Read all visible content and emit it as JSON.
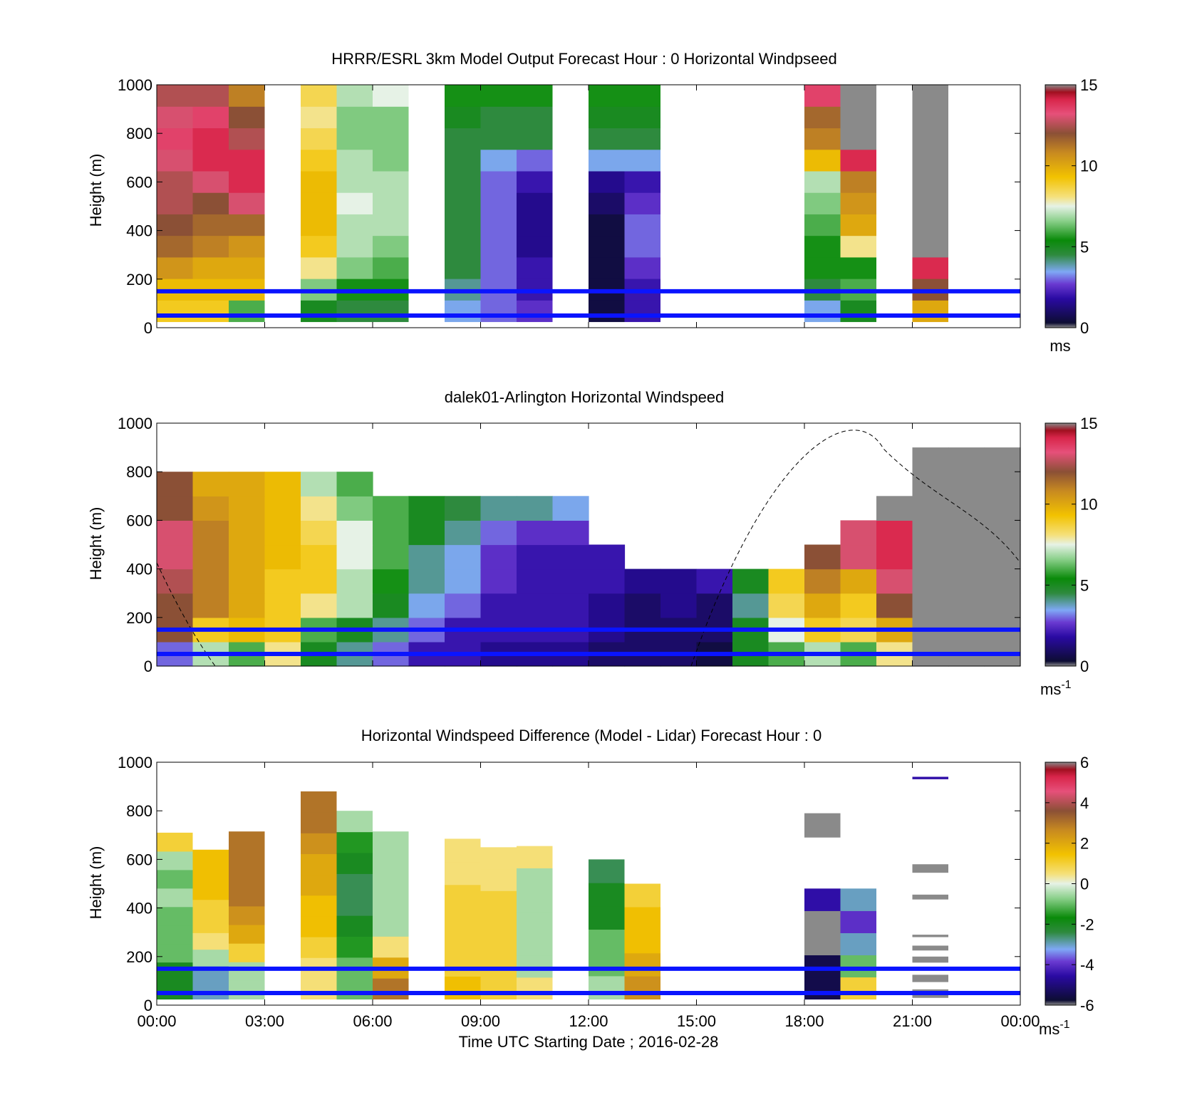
{
  "figure": {
    "xlabel": "Time UTC  Starting Date ; 2016-02-28",
    "xtick_labels": [
      "00:00",
      "03:00",
      "06:00",
      "09:00",
      "12:00",
      "15:00",
      "18:00",
      "21:00",
      "00:00"
    ]
  },
  "chart_data": [
    {
      "type": "heatmap",
      "title": "HRRR/ESRL 3km Model Output   Forecast Hour : 0 Horizontal Windpseed",
      "ylabel": "Height (m)",
      "yticks": [
        0,
        200,
        400,
        600,
        800,
        1000
      ],
      "ylim": [
        0,
        1000
      ],
      "xlim_hours": [
        0,
        24
      ],
      "colorbar": {
        "ticks": [
          0,
          5,
          10,
          15
        ],
        "range": [
          0,
          15
        ],
        "unit": "ms"
      },
      "reference_lines_m": [
        50,
        150
      ],
      "columns": [
        {
          "start_h": 0,
          "values": [
            9,
            9.5,
            10.5,
            11.5,
            12,
            12.5,
            12.5,
            13,
            13.5,
            13,
            12.5
          ]
        },
        {
          "start_h": 1,
          "values": [
            9,
            9.5,
            10,
            11,
            11.5,
            12,
            13,
            14,
            14,
            13.5,
            12.5
          ]
        },
        {
          "start_h": 2,
          "values": [
            6,
            9.5,
            10,
            10.5,
            11.5,
            13,
            14,
            14,
            12.5,
            12,
            11
          ]
        },
        {
          "start_h": 4,
          "values": [
            5,
            6.5,
            8,
            9,
            9.5,
            9.5,
            9.5,
            9,
            8.5,
            8,
            8.5
          ]
        },
        {
          "start_h": 5,
          "values": [
            4.5,
            5.5,
            6.5,
            7,
            7,
            7.5,
            7,
            7,
            6.5,
            6.5,
            7
          ]
        },
        {
          "start_h": 6,
          "values": [
            4.5,
            5.5,
            6,
            6.5,
            7,
            7,
            7,
            6.5,
            6.5,
            6.5,
            7.5
          ]
        },
        {
          "start_h": 8,
          "values": [
            3.5,
            4,
            4.5,
            4.5,
            4.5,
            4.5,
            4.5,
            4.5,
            4.5,
            5,
            5.5
          ]
        },
        {
          "start_h": 9,
          "values": [
            3,
            3,
            3,
            3,
            3,
            3,
            3,
            3.5,
            4.5,
            4.5,
            5.5
          ]
        },
        {
          "start_h": 10,
          "values": [
            2.5,
            2,
            2,
            1.5,
            1.5,
            1.5,
            2,
            3,
            4.5,
            4.5,
            5.5
          ]
        },
        {
          "start_h": 12,
          "values": [
            0.5,
            0.5,
            0.5,
            0.5,
            0.5,
            1,
            1.5,
            3.5,
            4.5,
            5,
            5.5
          ]
        },
        {
          "start_h": 13,
          "values": [
            2,
            2,
            2.5,
            3,
            3,
            2.5,
            2,
            3.5,
            4.5,
            5,
            5.5
          ]
        },
        {
          "start_h": 18,
          "values": [
            3.5,
            4.5,
            5.5,
            5.5,
            6,
            6.5,
            7,
            9.5,
            11,
            11.5,
            13.5
          ]
        },
        {
          "start_h": 19,
          "values": [
            5,
            6,
            5.5,
            8,
            10,
            10.5,
            11,
            14,
            15,
            15,
            15
          ]
        },
        {
          "start_h": 21,
          "values": [
            10,
            12,
            14,
            15,
            15,
            15,
            15,
            15,
            15,
            15,
            15
          ]
        }
      ]
    },
    {
      "type": "heatmap",
      "title": "dalek01-Arlington  Horizontal Windspeed",
      "ylabel": "Height (m)",
      "yticks": [
        0,
        200,
        400,
        600,
        800,
        1000
      ],
      "ylim": [
        0,
        1000
      ],
      "xlim_hours": [
        0,
        24
      ],
      "colorbar": {
        "ticks": [
          0,
          5,
          10,
          15
        ],
        "range": [
          0,
          15
        ],
        "unit": "ms",
        "unit_superscript": "-1"
      },
      "reference_lines_m": [
        50,
        150
      ],
      "time_bins_h": [
        0,
        1,
        2,
        3,
        4,
        5,
        6,
        7,
        8,
        9,
        10,
        11,
        12,
        13,
        14,
        15,
        16,
        17,
        18,
        19,
        20,
        21,
        22,
        23
      ],
      "height_bins_m": [
        0,
        100,
        200,
        300,
        400,
        500,
        600,
        700,
        800,
        900
      ],
      "grid": [
        [
          3,
          7,
          6,
          8,
          5,
          4,
          3,
          2,
          2,
          1.5,
          1.5,
          1.5,
          1,
          1,
          1,
          0.5,
          5,
          6,
          7,
          6,
          8,
          15,
          15,
          15
        ],
        [
          12,
          9,
          9.5,
          9,
          6,
          5,
          4,
          3,
          2,
          2,
          2,
          2,
          1.5,
          1,
          1,
          1,
          5,
          7.5,
          9,
          8.5,
          10,
          15,
          15,
          15
        ],
        [
          12,
          11,
          10,
          9,
          8,
          7,
          5,
          3.5,
          3,
          2,
          2,
          2,
          1.5,
          1,
          1.5,
          1,
          4,
          8.5,
          10,
          9,
          12,
          15,
          15,
          15
        ],
        [
          12.5,
          11,
          10,
          9,
          9,
          7,
          5.5,
          4,
          3.5,
          2.5,
          2,
          2,
          2,
          1.5,
          1.5,
          2,
          5,
          9,
          11,
          10,
          13,
          15,
          15,
          15
        ],
        [
          13,
          11,
          10,
          9.5,
          9,
          7.5,
          6,
          4,
          3.5,
          2.5,
          2,
          2,
          2,
          null,
          null,
          null,
          null,
          null,
          12,
          13,
          14,
          15,
          15,
          15
        ],
        [
          13,
          11,
          10,
          9.5,
          8.5,
          7.5,
          6,
          5,
          4,
          3,
          2.5,
          2.5,
          null,
          null,
          null,
          null,
          null,
          null,
          null,
          13,
          14,
          15,
          15,
          15
        ],
        [
          12,
          10.5,
          10,
          9.5,
          8,
          6.5,
          6,
          5,
          4.5,
          4,
          4,
          3.5,
          null,
          null,
          null,
          null,
          null,
          null,
          null,
          null,
          15,
          15,
          15,
          15
        ],
        [
          12,
          10,
          10,
          9.5,
          7,
          6,
          null,
          null,
          null,
          null,
          null,
          null,
          null,
          null,
          null,
          null,
          null,
          null,
          null,
          null,
          null,
          15,
          15,
          15
        ],
        [
          null,
          null,
          null,
          null,
          null,
          null,
          null,
          null,
          null,
          null,
          null,
          null,
          null,
          null,
          null,
          null,
          null,
          null,
          null,
          null,
          null,
          15,
          15,
          15
        ],
        [
          null,
          null,
          null,
          null,
          null,
          null,
          null,
          null,
          null,
          null,
          null,
          null,
          null,
          null,
          null,
          null,
          null,
          null,
          null,
          null,
          null,
          null,
          null,
          null
        ]
      ]
    },
    {
      "type": "heatmap",
      "title": "Horizontal Windspeed Difference (Model - Lidar) Forecast Hour : 0",
      "ylabel": "Height (m)",
      "yticks": [
        0,
        200,
        400,
        600,
        800,
        1000
      ],
      "ylim": [
        0,
        1000
      ],
      "xlim_hours": [
        0,
        24
      ],
      "colorbar": {
        "ticks": [
          -6,
          -4,
          -2,
          0,
          2,
          4,
          6
        ],
        "range": [
          -6,
          6
        ],
        "unit": "ms",
        "unit_superscript": "-1"
      },
      "reference_lines_m": [
        50,
        150
      ],
      "columns": [
        {
          "start_h": 0,
          "top_m": 710,
          "values": [
            -2,
            -2,
            -1,
            -1,
            -1,
            -0.5,
            -1,
            -0.5,
            1
          ]
        },
        {
          "start_h": 1,
          "top_m": 640,
          "values": [
            -3,
            -3,
            -0.5,
            0.5,
            1,
            1,
            1.5,
            1.5,
            1.5
          ]
        },
        {
          "start_h": 2,
          "top_m": 715,
          "values": [
            -0.5,
            -0.5,
            1,
            2,
            2.5,
            3,
            3,
            3,
            3
          ]
        },
        {
          "start_h": 4,
          "top_m": 880,
          "values": [
            0.5,
            0.5,
            1,
            1.5,
            1.5,
            2,
            2,
            2.5,
            3,
            3
          ]
        },
        {
          "start_h": 5,
          "top_m": 800,
          "values": [
            -1,
            -1,
            -1.5,
            -2,
            -2.5,
            -2.5,
            -2,
            -1.5,
            -0.5
          ]
        },
        {
          "start_h": 6,
          "top_m": 715,
          "values": [
            3,
            2,
            0.5,
            -0.5,
            -0.5,
            -0.5,
            -0.5,
            -0.5
          ]
        },
        {
          "start_h": 8,
          "top_m": 685,
          "values": [
            1.5,
            1,
            1,
            1,
            1,
            0.5,
            0.5
          ]
        },
        {
          "start_h": 9,
          "top_m": 650,
          "values": [
            1,
            1,
            1,
            1,
            1,
            0.5,
            0.5
          ]
        },
        {
          "start_h": 10,
          "top_m": 655,
          "values": [
            0.5,
            -0.5,
            -0.5,
            -0.5,
            -0.5,
            -0.5,
            0.5
          ]
        },
        {
          "start_h": 12,
          "top_m": 600,
          "values": [
            -0.5,
            -1,
            -1,
            -2,
            -2,
            -2.5
          ]
        },
        {
          "start_h": 13,
          "top_m": 500,
          "values": [
            2.5,
            2,
            1.5,
            1.5,
            1
          ]
        },
        {
          "start_h": 18,
          "top_m": 480,
          "values": [
            -5.5,
            -5.5,
            -6,
            -6,
            -4.5
          ]
        },
        {
          "start_h": 19,
          "top_m": 480,
          "values": [
            1,
            -1,
            -3,
            -4,
            -3
          ]
        }
      ],
      "patches": [
        {
          "start_h": 18,
          "bottom_m": 690,
          "top_m": 790,
          "value": 6
        },
        {
          "start_h": 21,
          "bottom_m": 930,
          "top_m": 940,
          "value": -4.5
        },
        {
          "start_h": 21,
          "bottom_m": 545,
          "top_m": 580,
          "value": 6
        },
        {
          "start_h": 21,
          "bottom_m": 435,
          "top_m": 455,
          "value": 6
        },
        {
          "start_h": 21,
          "bottom_m": 280,
          "top_m": 290,
          "value": 6
        },
        {
          "start_h": 21,
          "bottom_m": 225,
          "top_m": 245,
          "value": 6
        },
        {
          "start_h": 21,
          "bottom_m": 175,
          "top_m": 200,
          "value": 6
        },
        {
          "start_h": 21,
          "bottom_m": 95,
          "top_m": 125,
          "value": 6
        },
        {
          "start_h": 21,
          "bottom_m": 30,
          "top_m": 65,
          "value": 6
        }
      ]
    }
  ]
}
